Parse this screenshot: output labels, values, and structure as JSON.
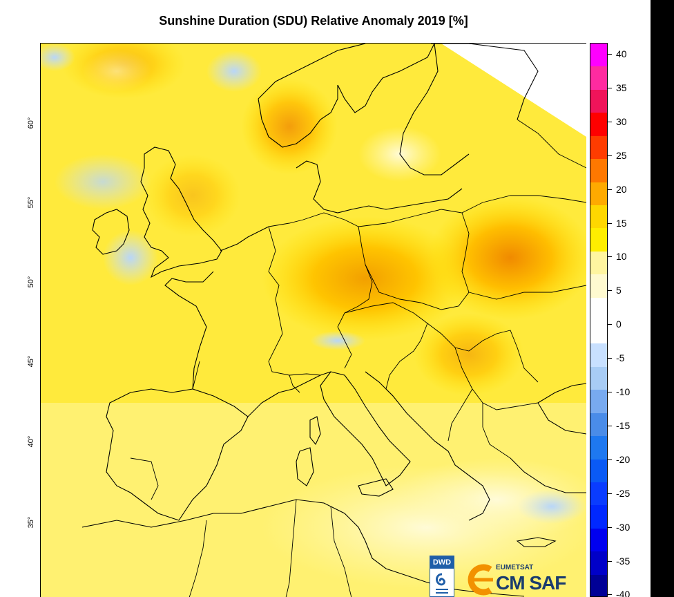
{
  "title": "Sunshine Duration (SDU) Relative Anomaly 2019 [%]",
  "map": {
    "latitude_labels": [
      "60°",
      "55°",
      "50°",
      "45°",
      "40°",
      "35°"
    ]
  },
  "colorbar": {
    "tick_labels": [
      "40",
      "35",
      "30",
      "25",
      "20",
      "15",
      "10",
      "5",
      "0",
      "-5",
      "-10",
      "-15",
      "-20",
      "-25",
      "-30",
      "-35",
      "-40"
    ],
    "colors": [
      "#ff00ff",
      "#ff2ba0",
      "#f0145a",
      "#ff0000",
      "#ff3c00",
      "#ff7800",
      "#ffaa00",
      "#ffd700",
      "#ffee00",
      "#fff5a0",
      "#fffad0",
      "#ffffff",
      "#ffffff",
      "#c8e0ff",
      "#a8ccf5",
      "#78aaf0",
      "#4a8ce8",
      "#1e78f0",
      "#0a5af5",
      "#0a3cff",
      "#0028ff",
      "#0000f0",
      "#0000c8",
      "#000096"
    ]
  },
  "logos": {
    "dwd": "DWD",
    "eumetsat": "EUMETSAT",
    "cmsaf": "CM SAF"
  },
  "colors": {
    "anomaly_high": "#ffe030",
    "anomaly_mid": "#fff066",
    "anomaly_low": "#fff8b0",
    "anomaly_neg": "#cfe3fb"
  }
}
